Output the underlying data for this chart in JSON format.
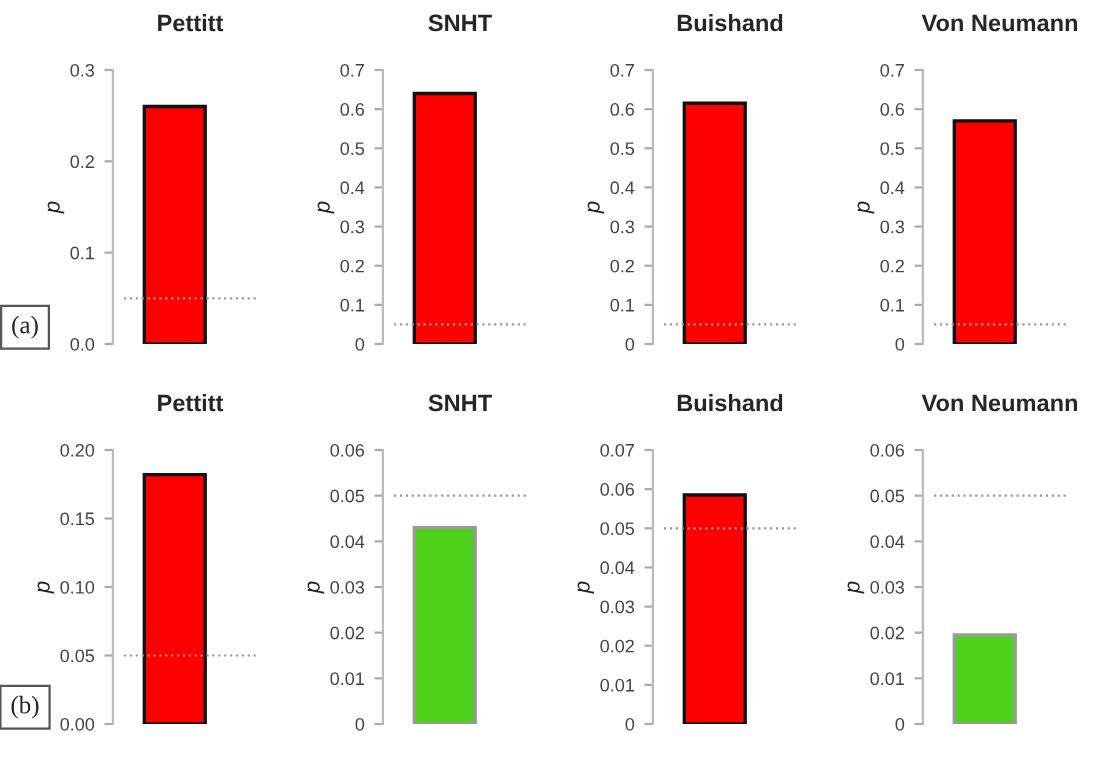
{
  "chart_data": [
    {
      "type": "bar",
      "title": "Pettitt",
      "ylabel": "p",
      "categories": [
        null
      ],
      "values": [
        0.26
      ],
      "colors": [
        "#ff0000"
      ],
      "ylim": [
        0,
        0.3
      ],
      "yticks": [
        {
          "value": 0,
          "label": "0.0"
        },
        0.1,
        0.2,
        0.3
      ],
      "ref_lines": [
        {
          "axis": "y",
          "value": 0.05,
          "color": "#999999",
          "line_style": "dotted"
        }
      ],
      "annotations": [
        "(a)"
      ],
      "grid": false,
      "tick_labels": "y"
    },
    {
      "type": "bar",
      "title": "SNHT",
      "ylabel": "p",
      "categories": [
        null
      ],
      "values": [
        0.64
      ],
      "colors": [
        "#ff0000"
      ],
      "ylim": [
        0,
        0.7
      ],
      "yticks": [
        0,
        0.1,
        0.2,
        0.3,
        0.4,
        0.5,
        0.6,
        0.7
      ],
      "ref_lines": [
        {
          "axis": "y",
          "value": 0.05,
          "color": "#999999",
          "line_style": "dotted"
        }
      ],
      "grid": false,
      "tick_labels": "y"
    },
    {
      "type": "bar",
      "title": "Buishand",
      "ylabel": "p",
      "categories": [
        null
      ],
      "values": [
        0.615
      ],
      "colors": [
        "#ff0000"
      ],
      "ylim": [
        0,
        0.7
      ],
      "yticks": [
        0,
        0.1,
        0.2,
        0.3,
        0.4,
        0.5,
        0.6,
        0.7
      ],
      "ref_lines": [
        {
          "axis": "y",
          "value": 0.05,
          "color": "#999999",
          "line_style": "dotted"
        }
      ],
      "grid": false,
      "tick_labels": "y"
    },
    {
      "type": "bar",
      "title": "Von Neumann",
      "ylabel": "p",
      "categories": [
        null
      ],
      "values": [
        0.57
      ],
      "colors": [
        "#ff0000"
      ],
      "ylim": [
        0,
        0.7
      ],
      "yticks": [
        0,
        0.1,
        0.2,
        0.3,
        0.4,
        0.5,
        0.6,
        0.7
      ],
      "ref_lines": [
        {
          "axis": "y",
          "value": 0.05,
          "color": "#999999",
          "line_style": "dotted"
        }
      ],
      "grid": false,
      "tick_labels": "y"
    },
    {
      "type": "bar",
      "title": "Pettitt",
      "ylabel": "p",
      "categories": [
        null
      ],
      "values": [
        0.182
      ],
      "colors": [
        "#ff0000"
      ],
      "ylim": [
        0,
        0.2
      ],
      "yticks": [
        {
          "value": 0,
          "label": "0.00"
        },
        0.05,
        {
          "value": 0.1,
          "label": "0.10"
        },
        0.15,
        {
          "value": 0.2,
          "label": "0.20"
        }
      ],
      "ref_lines": [
        {
          "axis": "y",
          "value": 0.05,
          "color": "#999999",
          "line_style": "dotted"
        }
      ],
      "annotations": [
        "(b)"
      ],
      "grid": false,
      "tick_labels": "y"
    },
    {
      "type": "bar",
      "title": "SNHT",
      "ylabel": "p",
      "categories": [
        null
      ],
      "values": [
        0.043
      ],
      "colors": [
        "#4dd11a"
      ],
      "ylim": [
        0,
        0.06
      ],
      "yticks": [
        0,
        0.01,
        0.02,
        0.03,
        0.04,
        0.05,
        0.06
      ],
      "ref_lines": [
        {
          "axis": "y",
          "value": 0.05,
          "color": "#999999",
          "line_style": "dotted"
        }
      ],
      "grid": false,
      "tick_labels": "y"
    },
    {
      "type": "bar",
      "title": "Buishand",
      "ylabel": "p",
      "categories": [
        null
      ],
      "values": [
        0.0585
      ],
      "colors": [
        "#ff0000"
      ],
      "ylim": [
        0,
        0.07
      ],
      "yticks": [
        0,
        0.01,
        0.02,
        0.03,
        0.04,
        0.05,
        0.06,
        0.07
      ],
      "ref_lines": [
        {
          "axis": "y",
          "value": 0.05,
          "color": "#999999",
          "line_style": "dotted"
        }
      ],
      "grid": false,
      "tick_labels": "y"
    },
    {
      "type": "bar",
      "title": "Von Neumann",
      "ylabel": "p",
      "categories": [
        null
      ],
      "values": [
        0.0195
      ],
      "colors": [
        "#4dd11a"
      ],
      "ylim": [
        0,
        0.06
      ],
      "yticks": [
        0,
        0.01,
        0.02,
        0.03,
        0.04,
        0.05,
        0.06
      ],
      "ref_lines": [
        {
          "axis": "y",
          "value": 0.05,
          "color": "#999999",
          "line_style": "dotted"
        }
      ],
      "grid": false,
      "tick_labels": "y"
    }
  ]
}
